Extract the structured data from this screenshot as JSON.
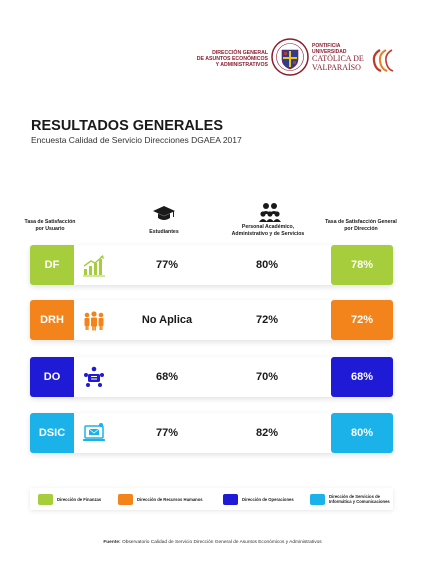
{
  "header": {
    "department_line1": "DIRECCIÓN GENERAL",
    "department_line2": "DE ASUNTOS ECONÓMICOS",
    "department_line3": "Y ADMINISTRATIVOS",
    "university_line1": "PONTIFICIA",
    "university_line2": "UNIVERSIDAD",
    "university_line3": "CATÓLICA DE",
    "university_line4": "VALPARAÍSO",
    "brand_color": "#8a1d2e"
  },
  "title": "RESULTADOS GENERALES",
  "subtitle": "Encuesta Calidad de Servicio Direcciones DGAEA 2017",
  "columns": {
    "user_rate": "Tasa de Satisfacción por Usuario",
    "students": "Estudiantes",
    "staff": "Personal Académico, Administrativo y de Servicios",
    "overall": "Tasa de Satisfacción General por Dirección"
  },
  "rows": [
    {
      "code": "DF",
      "icon": "growth-chart-icon",
      "students": "77%",
      "staff": "80%",
      "overall": "78%",
      "color": "#a6cd3b"
    },
    {
      "code": "DRH",
      "icon": "team-people-icon",
      "students": "No Aplica",
      "staff": "72%",
      "overall": "72%",
      "color": "#f3841c"
    },
    {
      "code": "DO",
      "icon": "meeting-table-icon",
      "students": "68%",
      "staff": "70%",
      "overall": "68%",
      "color": "#1f1ad6"
    },
    {
      "code": "DSIC",
      "icon": "computer-email-icon",
      "students": "77%",
      "staff": "82%",
      "overall": "80%",
      "color": "#1ab2e8"
    }
  ],
  "legend": [
    {
      "label": "Dirección de Finanzas",
      "color": "#a6cd3b"
    },
    {
      "label": "Dirección de Recursos Humanos",
      "color": "#f3841c"
    },
    {
      "label": "Dirección de Operaciones",
      "color": "#1f1ad6"
    },
    {
      "label": "Dirección de Servicios de Informática y Comunicaciones",
      "color": "#1ab2e8"
    }
  ],
  "source": {
    "label": "Fuente:",
    "text": "Observatorio Calidad de Servicio Dirección General de Asuntos Económicos y Administrativos"
  }
}
